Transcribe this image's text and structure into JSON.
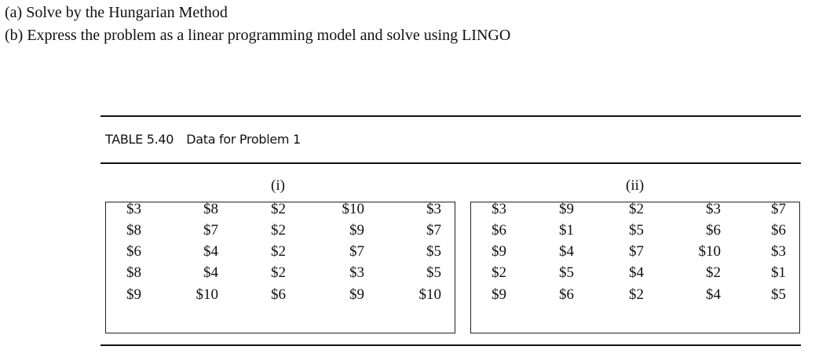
{
  "questions": [
    "(a) Solve by the Hungarian Method",
    "(b) Express the problem as a linear programming model and solve using LINGO"
  ],
  "table": {
    "label": "TABLE 5.40",
    "title": "Data for Problem 1",
    "matrices": [
      {
        "label": "(i)",
        "rows": [
          [
            "$3",
            "$8",
            "$2",
            "$10",
            "$3"
          ],
          [
            "$8",
            "$7",
            "$2",
            "$9",
            "$7"
          ],
          [
            "$6",
            "$4",
            "$2",
            "$7",
            "$5"
          ],
          [
            "$8",
            "$4",
            "$2",
            "$3",
            "$5"
          ],
          [
            "$9",
            "$10",
            "$6",
            "$9",
            "$10"
          ]
        ]
      },
      {
        "label": "(ii)",
        "rows": [
          [
            "$3",
            "$9",
            "$2",
            "$3",
            "$7"
          ],
          [
            "$6",
            "$1",
            "$5",
            "$6",
            "$6"
          ],
          [
            "$9",
            "$4",
            "$7",
            "$10",
            "$3"
          ],
          [
            "$2",
            "$5",
            "$4",
            "$2",
            "$1"
          ],
          [
            "$9",
            "$6",
            "$2",
            "$4",
            "$5"
          ]
        ]
      }
    ]
  }
}
